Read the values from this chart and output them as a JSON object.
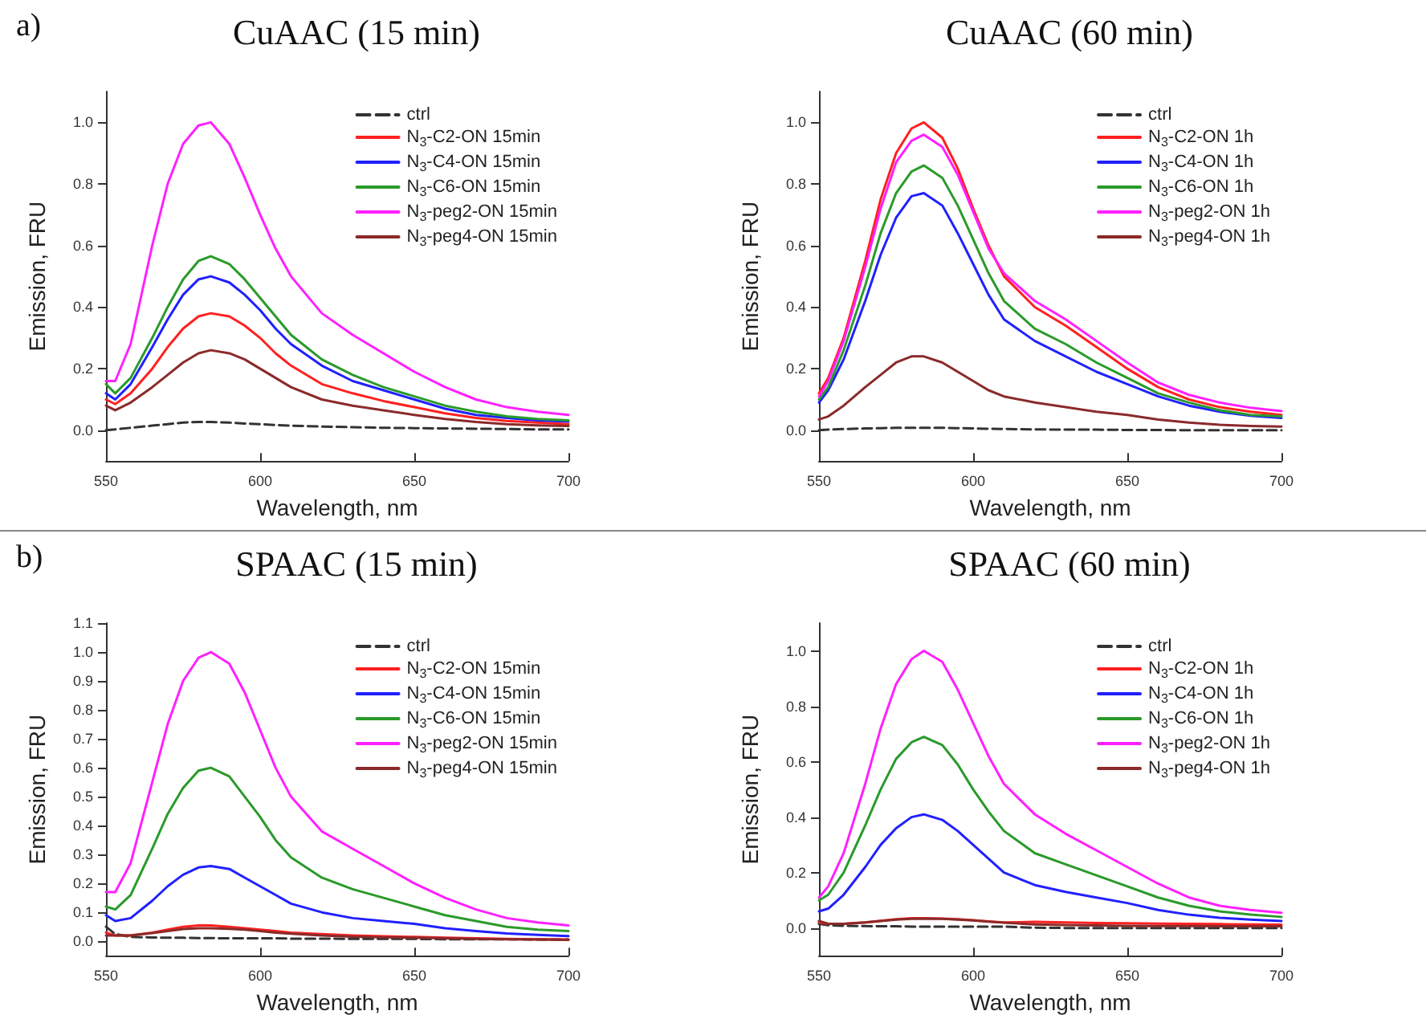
{
  "chart_data": [
    {
      "type": "line",
      "title": "CuAAC (15 min)",
      "annotations": [
        "a)"
      ],
      "xlabel": "Wavelength, nm",
      "ylabel": "Emission, FRU",
      "legend": "top right",
      "marker": "none",
      "xlim": [
        550,
        700
      ],
      "xticks": [
        550,
        600,
        650,
        700
      ],
      "ylim": [
        -0.1,
        1.1
      ],
      "yticks": [
        {
          "value": 0,
          "label": "0.0"
        },
        {
          "value": 0.2,
          "label": "0.2"
        },
        {
          "value": 0.4,
          "label": "0.4"
        },
        {
          "value": 0.6,
          "label": "0.6"
        },
        {
          "value": 0.8,
          "label": "0.8"
        },
        {
          "value": 1,
          "label": "1.0"
        }
      ],
      "x": [
        550,
        553,
        558,
        565,
        570,
        575,
        580,
        584,
        590,
        595,
        600,
        605,
        610,
        620,
        630,
        640,
        650,
        660,
        670,
        680,
        690,
        700
      ],
      "series": [
        {
          "name": "ctrl",
          "color": "#333333",
          "line_style": "dashed",
          "values": [
            0.0,
            0.003,
            0.008,
            0.015,
            0.02,
            0.025,
            0.027,
            0.027,
            0.025,
            0.022,
            0.02,
            0.017,
            0.015,
            0.012,
            0.01,
            0.008,
            0.007,
            0.006,
            0.005,
            0.004,
            0.003,
            0.003
          ]
        },
        {
          "name": "N$_{3}$-C2-ON 15min",
          "color": "#ff2020",
          "values": [
            0.1,
            0.085,
            0.12,
            0.2,
            0.27,
            0.33,
            0.37,
            0.38,
            0.37,
            0.34,
            0.3,
            0.25,
            0.21,
            0.15,
            0.12,
            0.095,
            0.075,
            0.055,
            0.04,
            0.03,
            0.025,
            0.02
          ]
        },
        {
          "name": "N$_{3}$-C4-ON 15min",
          "color": "#2020ff",
          "values": [
            0.12,
            0.1,
            0.15,
            0.27,
            0.36,
            0.44,
            0.49,
            0.5,
            0.48,
            0.44,
            0.39,
            0.33,
            0.28,
            0.21,
            0.16,
            0.13,
            0.1,
            0.07,
            0.05,
            0.04,
            0.032,
            0.028
          ]
        },
        {
          "name": "N$_{3}$-C6-ON 15min",
          "color": "#2a9a2a",
          "values": [
            0.15,
            0.12,
            0.17,
            0.3,
            0.4,
            0.49,
            0.55,
            0.565,
            0.54,
            0.49,
            0.43,
            0.37,
            0.31,
            0.23,
            0.18,
            0.14,
            0.11,
            0.08,
            0.06,
            0.045,
            0.037,
            0.032
          ]
        },
        {
          "name": "N$_{3}$-peg2-ON 15min",
          "color": "#ff20ff",
          "values": [
            0.16,
            0.16,
            0.28,
            0.6,
            0.8,
            0.93,
            0.99,
            1.0,
            0.93,
            0.82,
            0.7,
            0.59,
            0.5,
            0.38,
            0.31,
            0.25,
            0.19,
            0.14,
            0.1,
            0.075,
            0.06,
            0.05
          ]
        },
        {
          "name": "N$_{3}$-peg4-ON 15min",
          "color": "#8b2a2a",
          "values": [
            0.08,
            0.065,
            0.09,
            0.14,
            0.18,
            0.22,
            0.25,
            0.26,
            0.25,
            0.23,
            0.2,
            0.17,
            0.14,
            0.1,
            0.08,
            0.065,
            0.05,
            0.037,
            0.027,
            0.02,
            0.016,
            0.014
          ]
        }
      ]
    },
    {
      "type": "line",
      "title": "CuAAC (60 min)",
      "xlabel": "Wavelength, nm",
      "ylabel": "Emission, FRU",
      "legend": "top right",
      "marker": "none",
      "xlim": [
        550,
        700
      ],
      "xticks": [
        550,
        600,
        650,
        700
      ],
      "ylim": [
        -0.1,
        1.1
      ],
      "yticks": [
        {
          "value": 0,
          "label": "0.0"
        },
        {
          "value": 0.2,
          "label": "0.2"
        },
        {
          "value": 0.4,
          "label": "0.4"
        },
        {
          "value": 0.6,
          "label": "0.6"
        },
        {
          "value": 0.8,
          "label": "0.8"
        },
        {
          "value": 1,
          "label": "1.0"
        }
      ],
      "x": [
        550,
        553,
        558,
        565,
        570,
        575,
        580,
        584,
        590,
        595,
        600,
        605,
        610,
        620,
        630,
        640,
        650,
        660,
        670,
        680,
        690,
        700
      ],
      "series": [
        {
          "name": "ctrl",
          "color": "#333333",
          "line_style": "dashed",
          "values": [
            0.0,
            0.002,
            0.004,
            0.006,
            0.007,
            0.008,
            0.008,
            0.008,
            0.008,
            0.007,
            0.006,
            0.005,
            0.004,
            0.003,
            0.002,
            0.002,
            0.001,
            0.001,
            0.0,
            0.0,
            0.0,
            0.0
          ]
        },
        {
          "name": "N$_{3}$-C2-ON 1h",
          "color": "#ff2020",
          "values": [
            0.12,
            0.17,
            0.3,
            0.55,
            0.75,
            0.9,
            0.98,
            1.0,
            0.95,
            0.85,
            0.72,
            0.6,
            0.5,
            0.4,
            0.34,
            0.27,
            0.2,
            0.14,
            0.1,
            0.075,
            0.06,
            0.05
          ]
        },
        {
          "name": "N$_{3}$-C4-ON 1h",
          "color": "#2020ff",
          "values": [
            0.09,
            0.13,
            0.23,
            0.42,
            0.57,
            0.69,
            0.76,
            0.77,
            0.73,
            0.64,
            0.54,
            0.44,
            0.36,
            0.29,
            0.24,
            0.19,
            0.15,
            0.11,
            0.08,
            0.06,
            0.047,
            0.04
          ]
        },
        {
          "name": "N$_{3}$-C6-ON 1h",
          "color": "#2a9a2a",
          "values": [
            0.1,
            0.14,
            0.26,
            0.47,
            0.64,
            0.77,
            0.84,
            0.86,
            0.82,
            0.73,
            0.62,
            0.51,
            0.42,
            0.33,
            0.28,
            0.22,
            0.17,
            0.12,
            0.09,
            0.065,
            0.05,
            0.045
          ]
        },
        {
          "name": "N$_{3}$-peg2-ON 1h",
          "color": "#ff20ff",
          "values": [
            0.11,
            0.16,
            0.29,
            0.53,
            0.72,
            0.87,
            0.94,
            0.96,
            0.92,
            0.83,
            0.71,
            0.59,
            0.51,
            0.42,
            0.36,
            0.29,
            0.22,
            0.155,
            0.115,
            0.09,
            0.073,
            0.062
          ]
        },
        {
          "name": "N$_{3}$-peg4-ON 1h",
          "color": "#8b2a2a",
          "values": [
            0.035,
            0.045,
            0.08,
            0.14,
            0.18,
            0.22,
            0.24,
            0.24,
            0.22,
            0.19,
            0.16,
            0.13,
            0.11,
            0.09,
            0.075,
            0.06,
            0.05,
            0.035,
            0.025,
            0.018,
            0.014,
            0.012
          ]
        }
      ]
    },
    {
      "type": "line",
      "title": "SPAAC (15 min)",
      "annotations": [
        "b)"
      ],
      "xlabel": "Wavelength, nm",
      "ylabel": "Emission, FRU",
      "legend": "top right",
      "marker": "none",
      "xlim": [
        550,
        700
      ],
      "xticks": [
        550,
        600,
        650,
        700
      ],
      "ylim": [
        -0.05,
        1.1
      ],
      "yticks": [
        {
          "value": 0,
          "label": "0.0"
        },
        {
          "value": 0.1,
          "label": "0.1"
        },
        {
          "value": 0.2,
          "label": "0.2"
        },
        {
          "value": 0.3,
          "label": "0.3"
        },
        {
          "value": 0.4,
          "label": "0.4"
        },
        {
          "value": 0.5,
          "label": "0.5"
        },
        {
          "value": 0.6,
          "label": "0.6"
        },
        {
          "value": 0.7,
          "label": "0.7"
        },
        {
          "value": 0.8,
          "label": "0.8"
        },
        {
          "value": 0.9,
          "label": "0.9"
        },
        {
          "value": 1,
          "label": "1.0"
        },
        {
          "value": 1.1,
          "label": "1.1"
        }
      ],
      "x": [
        550,
        553,
        558,
        565,
        570,
        575,
        580,
        584,
        590,
        595,
        600,
        605,
        610,
        620,
        630,
        640,
        650,
        660,
        670,
        680,
        690,
        700
      ],
      "series": [
        {
          "name": "ctrl",
          "color": "#333333",
          "line_style": "dashed",
          "values": [
            0.05,
            0.025,
            0.015,
            0.013,
            0.012,
            0.012,
            0.011,
            0.011,
            0.01,
            0.01,
            0.01,
            0.01,
            0.009,
            0.009,
            0.008,
            0.008,
            0.008,
            0.007,
            0.007,
            0.007,
            0.006,
            0.006
          ]
        },
        {
          "name": "N$_{3}$-C2-ON 15min",
          "color": "#ff2020",
          "values": [
            0.03,
            0.02,
            0.02,
            0.03,
            0.04,
            0.05,
            0.055,
            0.055,
            0.05,
            0.045,
            0.04,
            0.035,
            0.03,
            0.025,
            0.02,
            0.017,
            0.015,
            0.012,
            0.01,
            0.008,
            0.007,
            0.006
          ]
        },
        {
          "name": "N$_{3}$-C4-ON 15min",
          "color": "#2020ff",
          "values": [
            0.09,
            0.07,
            0.08,
            0.14,
            0.19,
            0.23,
            0.255,
            0.26,
            0.25,
            0.22,
            0.19,
            0.16,
            0.13,
            0.1,
            0.08,
            0.07,
            0.06,
            0.045,
            0.035,
            0.027,
            0.022,
            0.018
          ]
        },
        {
          "name": "N$_{3}$-C6-ON 15min",
          "color": "#2a9a2a",
          "values": [
            0.12,
            0.11,
            0.16,
            0.32,
            0.44,
            0.53,
            0.59,
            0.6,
            0.57,
            0.5,
            0.43,
            0.35,
            0.29,
            0.22,
            0.18,
            0.15,
            0.12,
            0.09,
            0.07,
            0.05,
            0.04,
            0.035
          ]
        },
        {
          "name": "N$_{3}$-peg2-ON 15min",
          "color": "#ff20ff",
          "values": [
            0.17,
            0.17,
            0.27,
            0.55,
            0.75,
            0.9,
            0.98,
            1.0,
            0.96,
            0.86,
            0.73,
            0.6,
            0.5,
            0.38,
            0.32,
            0.26,
            0.2,
            0.15,
            0.11,
            0.08,
            0.065,
            0.055
          ]
        },
        {
          "name": "N$_{3}$-peg4-ON 15min",
          "color": "#8b2a2a",
          "values": [
            0.02,
            0.02,
            0.02,
            0.028,
            0.035,
            0.042,
            0.045,
            0.045,
            0.043,
            0.04,
            0.035,
            0.03,
            0.026,
            0.02,
            0.016,
            0.014,
            0.012,
            0.01,
            0.008,
            0.007,
            0.006,
            0.005
          ]
        }
      ]
    },
    {
      "type": "line",
      "title": "SPAAC (60 min)",
      "xlabel": "Wavelength, nm",
      "ylabel": "Emission, FRU",
      "legend": "top right",
      "marker": "none",
      "xlim": [
        550,
        700
      ],
      "xticks": [
        550,
        600,
        650,
        700
      ],
      "ylim": [
        -0.1,
        1.1
      ],
      "yticks": [
        {
          "value": 0,
          "label": "0.0"
        },
        {
          "value": 0.2,
          "label": "0.2"
        },
        {
          "value": 0.4,
          "label": "0.4"
        },
        {
          "value": 0.6,
          "label": "0.6"
        },
        {
          "value": 0.8,
          "label": "0.8"
        },
        {
          "value": 1,
          "label": "1.0"
        }
      ],
      "x": [
        550,
        553,
        558,
        565,
        570,
        575,
        580,
        584,
        590,
        595,
        600,
        605,
        610,
        620,
        630,
        640,
        650,
        660,
        670,
        680,
        690,
        700
      ],
      "series": [
        {
          "name": "ctrl",
          "color": "#333333",
          "line_style": "dashed",
          "values": [
            0.015,
            0.01,
            0.008,
            0.007,
            0.006,
            0.006,
            0.005,
            0.005,
            0.005,
            0.005,
            0.005,
            0.005,
            0.005,
            0.001,
            0.0,
            0.0,
            0.0,
            0.0,
            0.0,
            0.0,
            0.0,
            0.0
          ]
        },
        {
          "name": "N$_{3}$-C2-ON 1h",
          "color": "#ff2020",
          "values": [
            0.02,
            0.015,
            0.015,
            0.02,
            0.026,
            0.032,
            0.035,
            0.035,
            0.034,
            0.032,
            0.028,
            0.024,
            0.02,
            0.022,
            0.02,
            0.018,
            0.017,
            0.016,
            0.015,
            0.014,
            0.013,
            0.012
          ]
        },
        {
          "name": "N$_{3}$-C4-ON 1h",
          "color": "#2020ff",
          "values": [
            0.06,
            0.07,
            0.12,
            0.22,
            0.3,
            0.36,
            0.4,
            0.41,
            0.39,
            0.35,
            0.3,
            0.25,
            0.2,
            0.155,
            0.13,
            0.11,
            0.09,
            0.065,
            0.048,
            0.037,
            0.03,
            0.025
          ]
        },
        {
          "name": "N$_{3}$-C6-ON 1h",
          "color": "#2a9a2a",
          "values": [
            0.1,
            0.12,
            0.2,
            0.37,
            0.5,
            0.61,
            0.67,
            0.69,
            0.66,
            0.59,
            0.5,
            0.42,
            0.35,
            0.27,
            0.23,
            0.19,
            0.15,
            0.11,
            0.08,
            0.06,
            0.048,
            0.04
          ]
        },
        {
          "name": "N$_{3}$-peg2-ON 1h",
          "color": "#ff20ff",
          "values": [
            0.11,
            0.15,
            0.27,
            0.52,
            0.72,
            0.88,
            0.97,
            1.0,
            0.96,
            0.86,
            0.74,
            0.62,
            0.52,
            0.41,
            0.34,
            0.28,
            0.22,
            0.16,
            0.11,
            0.08,
            0.065,
            0.055
          ]
        },
        {
          "name": "N$_{3}$-peg4-ON 1h",
          "color": "#8b2a2a",
          "values": [
            0.025,
            0.015,
            0.015,
            0.02,
            0.025,
            0.03,
            0.033,
            0.034,
            0.033,
            0.03,
            0.027,
            0.023,
            0.019,
            0.013,
            0.011,
            0.009,
            0.008,
            0.007,
            0.007,
            0.006,
            0.006,
            0.006
          ]
        }
      ]
    }
  ]
}
